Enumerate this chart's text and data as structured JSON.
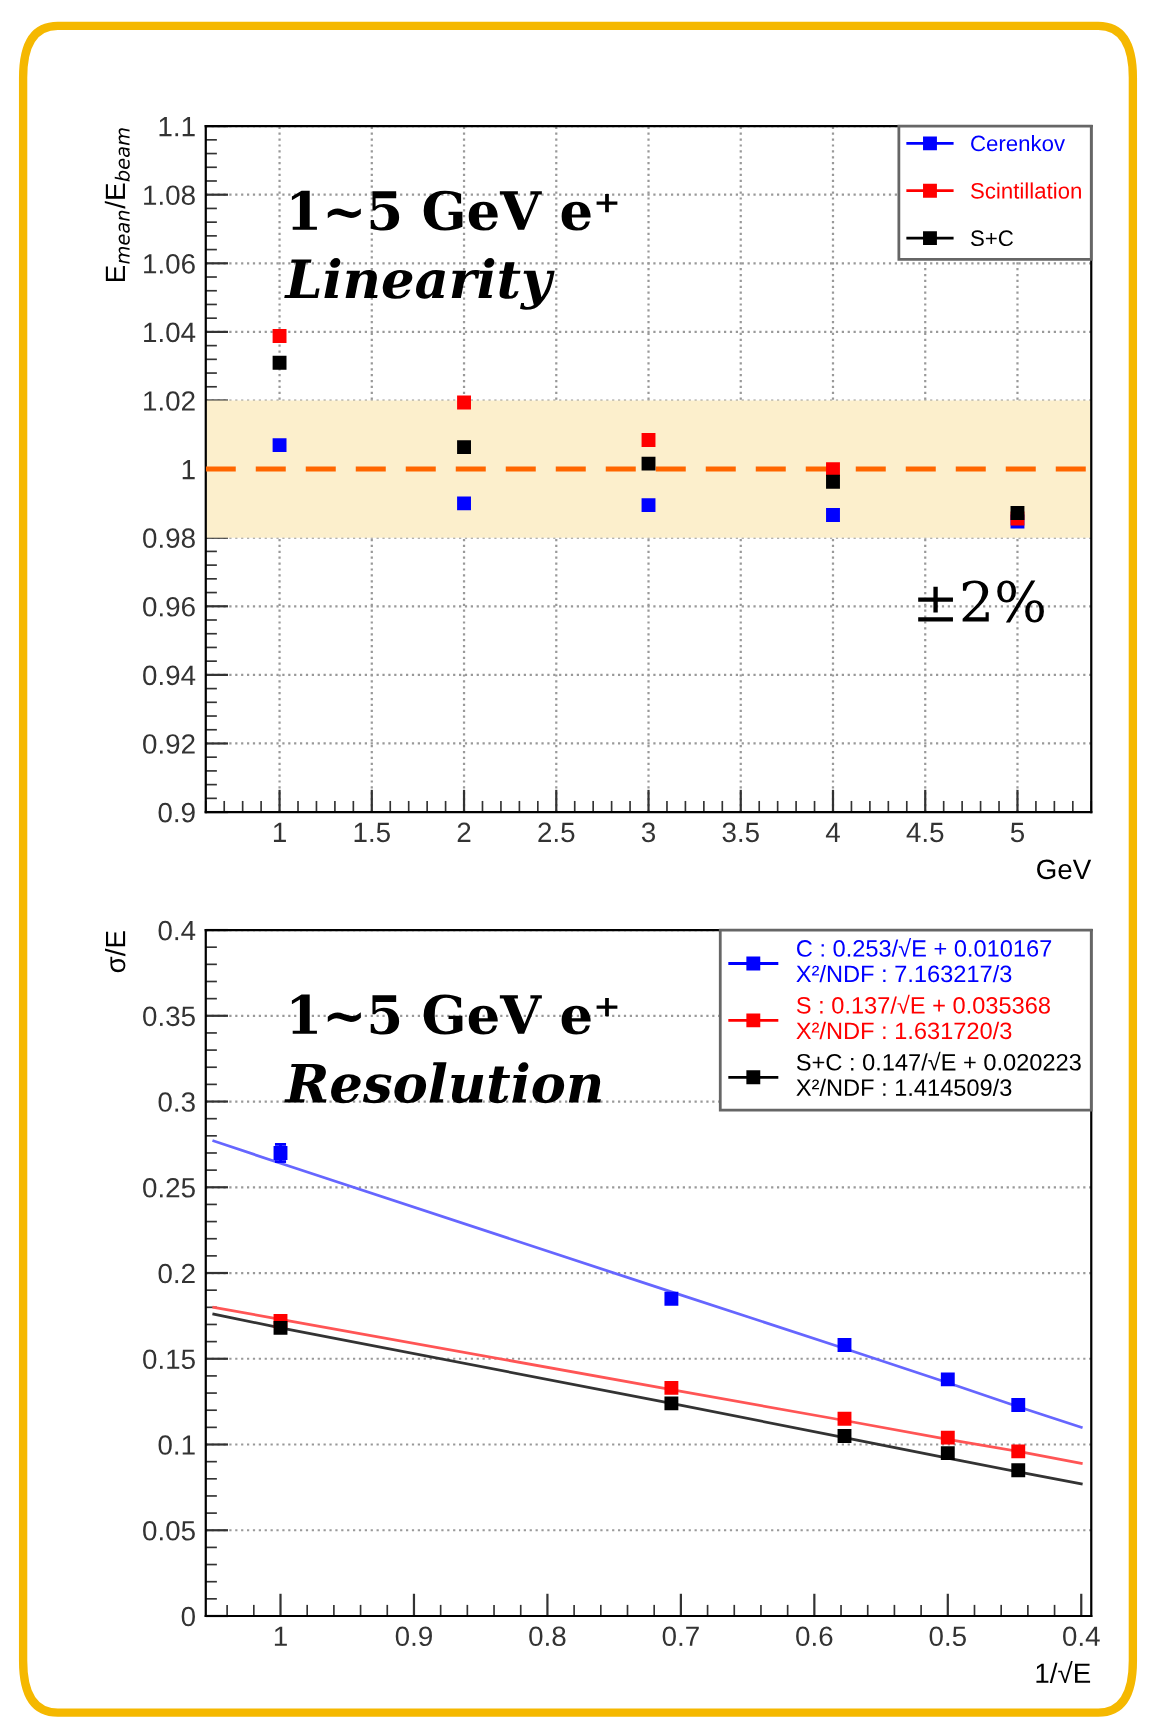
{
  "chart_data": [
    {
      "type": "scatter",
      "xlabel": "GeV",
      "ylabel": "E$_{mean}$/E$_{beam}$",
      "x": [
        1,
        2,
        3,
        4,
        5
      ],
      "series": [
        {
          "name": "Cerenkov",
          "color": "#0000ff",
          "values": [
            1.007,
            0.99,
            0.9895,
            0.9866,
            0.9847
          ]
        },
        {
          "name": "Scintillation",
          "color": "#ff0000",
          "values": [
            1.0388,
            1.0194,
            1.0085,
            1.0,
            0.9856
          ]
        },
        {
          "name": "S+C",
          "color": "#000000",
          "values": [
            1.031,
            1.0064,
            1.0016,
            0.9963,
            0.9872
          ]
        }
      ],
      "xlim": [
        0.6,
        5.4
      ],
      "ylim": [
        0.9,
        1.1
      ],
      "xticks": [
        1,
        1.5,
        2,
        2.5,
        3,
        3.5,
        4,
        4.5,
        5
      ],
      "yticks": [
        0.9,
        0.92,
        0.94,
        0.96,
        0.98,
        1,
        1.02,
        1.04,
        1.06,
        1.08,
        1.1
      ],
      "ref_lines": [
        {
          "axis": "y",
          "value": 1,
          "color": "#ff6600",
          "line_style": "dashed"
        }
      ],
      "bands": [
        {
          "axis": "y",
          "from": 0.98,
          "to": 1.02,
          "label": "±2%",
          "color": "#fcefcc"
        }
      ],
      "annotations": [
        "1~5 GeV e⁺",
        "Linearity"
      ],
      "grid": true,
      "legend": "top right",
      "marker": "square"
    },
    {
      "type": "scatter",
      "xlabel": "1/√E",
      "ylabel": "σ/E",
      "x": [
        1,
        0.7071,
        0.5774,
        0.5,
        0.4472
      ],
      "series": [
        {
          "name": "C : 0.253/√E + 0.010167\nX²/NDF : 7.163217/3",
          "color": "#0000ff",
          "values": [
            0.27,
            0.185,
            0.158,
            0.138,
            0.123
          ],
          "errors": [
            0.005,
            null,
            null,
            null,
            null
          ]
        },
        {
          "name": "S : 0.137/√E + 0.035368\nX²/NDF : 1.631720/3",
          "color": "#ff0000",
          "values": [
            0.172,
            0.133,
            0.115,
            0.104,
            0.096
          ]
        },
        {
          "name": "S+C : 0.147/√E + 0.020223\nX²/NDF : 1.414509/3",
          "color": "#000000",
          "values": [
            0.168,
            0.124,
            0.105,
            0.095,
            0.085
          ]
        },
        {
          "type": "line",
          "marker": "none",
          "color": "#6666ff",
          "x": [
            1.05,
            1,
            0.7071,
            0.5774,
            0.5,
            0.4472,
            0.4
          ],
          "values": [
            0.277,
            0.264,
            0.189,
            0.156,
            0.136,
            0.122,
            0.11
          ]
        },
        {
          "type": "line",
          "marker": "none",
          "color": "#ff5555",
          "x": [
            1.05,
            1,
            0.7071,
            0.5774,
            0.5,
            0.4472,
            0.4
          ],
          "values": [
            0.18,
            0.173,
            0.132,
            0.114,
            0.103,
            0.096,
            0.089
          ]
        },
        {
          "type": "line",
          "marker": "none",
          "color": "#333333",
          "x": [
            1.05,
            1,
            0.7071,
            0.5774,
            0.5,
            0.4472,
            0.4
          ],
          "values": [
            0.176,
            0.168,
            0.124,
            0.104,
            0.092,
            0.084,
            0.077
          ]
        }
      ],
      "xlim": [
        1.056,
        0.3925
      ],
      "ylim": [
        0,
        0.4
      ],
      "xticks": [
        1,
        0.9,
        0.8,
        0.7,
        0.6,
        0.5,
        0.4
      ],
      "yticks": [
        0,
        0.05,
        0.1,
        0.15,
        0.2,
        0.25,
        0.3,
        0.35,
        0.4
      ],
      "annotations": [
        "1~5 GeV e⁺",
        "Resolution"
      ],
      "grid": "y",
      "legend": "top right",
      "marker": "square"
    }
  ]
}
